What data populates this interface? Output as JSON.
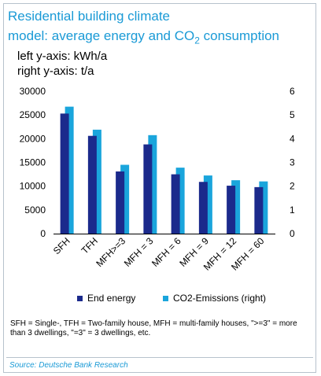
{
  "title_line1": "Residential building climate",
  "title_line2_pre": "model: average energy and CO",
  "title_line2_sub": "2",
  "title_line2_post": " consumption",
  "axis_note_left": "left y-axis: kWh/a",
  "axis_note_right": "right y-axis: t/a",
  "footnote": "SFH = Single-, TFH = Two-family house, MFH = multi-family houses, \">=3\" = more than 3 dwellings, \"=3\" = 3 dwellings, etc.",
  "source": "Source: Deutsche Bank Research",
  "colors": {
    "title": "#1a9ad6",
    "series_dark": "#1b2a8c",
    "series_light": "#1aa5dc"
  },
  "chart_data": {
    "type": "bar",
    "categories": [
      "SFH",
      "TFH",
      "MFH>=3",
      "MFH = 3",
      "MFH = 6",
      "MFH = 9",
      "MFH = 12",
      "MFH = 60"
    ],
    "series": [
      {
        "name": "End energy",
        "axis": "left",
        "values": [
          25300,
          20600,
          13100,
          18800,
          12500,
          10900,
          10100,
          9800
        ]
      },
      {
        "name": "CO2-Emissions (right)",
        "axis": "right",
        "values": [
          5.35,
          4.38,
          2.9,
          4.15,
          2.78,
          2.45,
          2.25,
          2.2
        ]
      }
    ],
    "yleft": {
      "min": 0,
      "max": 30000,
      "ticks": [
        "0",
        "5000",
        "10000",
        "15000",
        "20000",
        "25000",
        "30000"
      ]
    },
    "yright": {
      "min": 0,
      "max": 6,
      "ticks": [
        "0",
        "1",
        "2",
        "3",
        "4",
        "5",
        "6"
      ]
    },
    "legend_position": "bottom"
  }
}
